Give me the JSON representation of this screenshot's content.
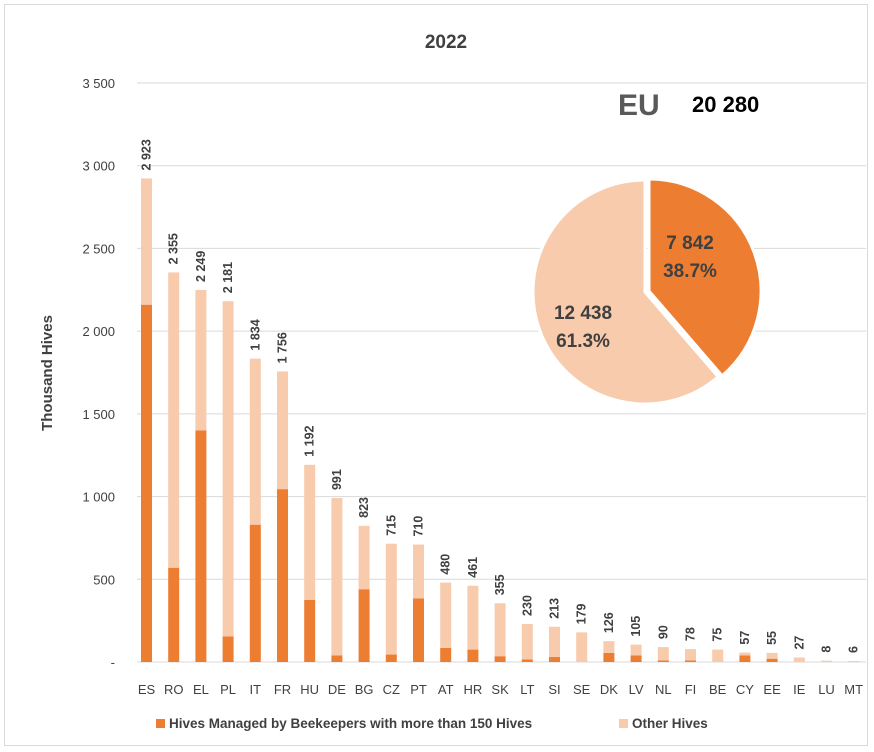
{
  "chart_data": {
    "type": "bar",
    "stacked": true,
    "title": "2022",
    "ylabel": "Thousand Hives",
    "ylim": [
      0,
      3500
    ],
    "yticks": [
      0,
      500,
      1000,
      1500,
      2000,
      2500,
      3000,
      3500
    ],
    "ytick_labels": [
      "-",
      "500",
      "1 000",
      "1 500",
      "2 000",
      "2 500",
      "3 000",
      "3 500"
    ],
    "grid": true,
    "legend_position": "bottom",
    "categories": [
      "ES",
      "RO",
      "EL",
      "PL",
      "IT",
      "FR",
      "HU",
      "DE",
      "BG",
      "CZ",
      "PT",
      "AT",
      "HR",
      "SK",
      "LT",
      "SI",
      "SE",
      "DK",
      "LV",
      "NL",
      "FI",
      "BE",
      "CY",
      "EE",
      "IE",
      "LU",
      "MT"
    ],
    "series": [
      {
        "name": "Hives Managed by Beekeepers with more than 150 Hives",
        "color": "#ed7d31",
        "values": [
          2160,
          570,
          1400,
          155,
          830,
          1045,
          375,
          40,
          440,
          45,
          385,
          85,
          75,
          35,
          15,
          30,
          0,
          55,
          40,
          10,
          10,
          0,
          40,
          20,
          0,
          0,
          0
        ]
      },
      {
        "name": "Other Hives",
        "color": "#f8cbad",
        "values": [
          763,
          1785,
          849,
          2026,
          1004,
          711,
          817,
          951,
          383,
          670,
          325,
          395,
          386,
          320,
          215,
          183,
          179,
          71,
          65,
          80,
          68,
          75,
          17,
          35,
          27,
          8,
          6
        ]
      }
    ],
    "totals": [
      2923,
      2355,
      2249,
      2181,
      1834,
      1756,
      1192,
      991,
      823,
      715,
      710,
      480,
      461,
      355,
      230,
      213,
      179,
      126,
      105,
      90,
      78,
      75,
      57,
      55,
      27,
      8,
      6
    ],
    "total_labels": [
      "2 923",
      "2 355",
      "2 249",
      "2 181",
      "1 834",
      "1 756",
      "1 192",
      "991",
      "823",
      "715",
      "710",
      "480",
      "461",
      "355",
      "230",
      "213",
      "179",
      "126",
      "105",
      "90",
      "78",
      "75",
      "57",
      "55",
      "27",
      "8",
      "6"
    ],
    "inset_pie": {
      "type": "pie",
      "label": "EU",
      "total_label": "20 280",
      "slices": [
        {
          "series": "Hives Managed by Beekeepers with more than 150 Hives",
          "value": 7842,
          "value_label": "7 842",
          "percent_label": "38.7%",
          "color": "#ed7d31"
        },
        {
          "series": "Other Hives",
          "value": 12438,
          "value_label": "12 438",
          "percent_label": "61.3%",
          "color": "#f8cbad"
        }
      ]
    }
  }
}
